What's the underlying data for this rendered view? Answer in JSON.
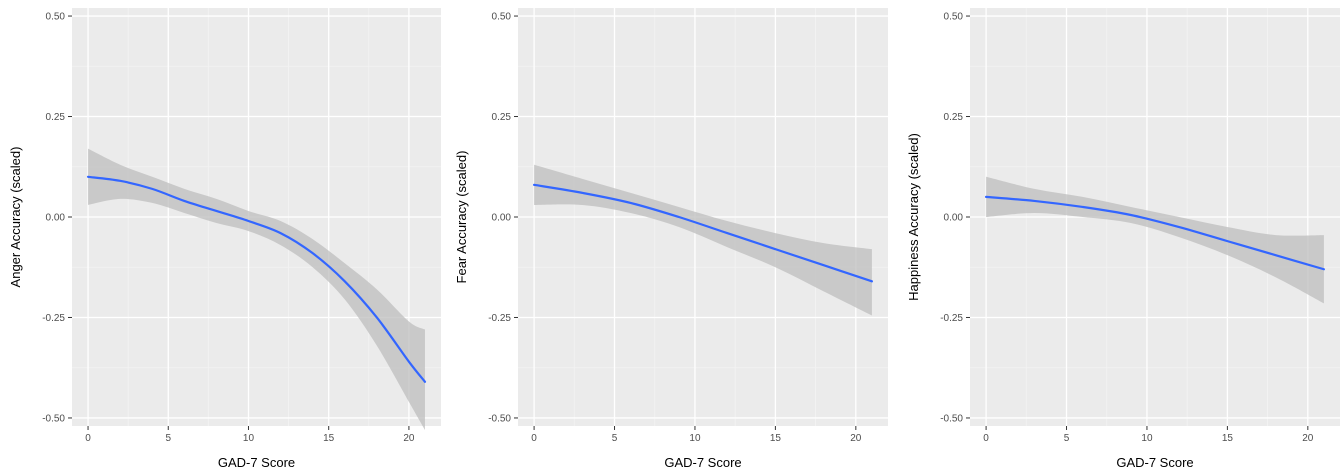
{
  "chart_data": [
    {
      "type": "line",
      "title": "",
      "xlabel": "GAD-7 Score",
      "ylabel": "Anger Accuracy (scaled)",
      "xlim": [
        -1,
        22
      ],
      "ylim": [
        -0.52,
        0.52
      ],
      "x_ticks": [
        0,
        5,
        10,
        15,
        20
      ],
      "y_ticks": [
        0.5,
        0.25,
        0.0,
        -0.25,
        -0.5
      ],
      "x_tick_labels": [
        "0",
        "5",
        "10",
        "15",
        "20"
      ],
      "y_tick_labels": [
        "0.50",
        "0.25",
        "0.00",
        "-0.25",
        "-0.50"
      ],
      "grid": true,
      "series": [
        {
          "x": [
            0,
            2,
            4,
            6,
            8,
            10,
            12,
            14,
            16,
            18,
            20,
            21
          ],
          "y": [
            0.1,
            0.09,
            0.07,
            0.04,
            0.015,
            -0.01,
            -0.04,
            -0.09,
            -0.16,
            -0.25,
            -0.36,
            -0.41
          ],
          "lower": [
            0.03,
            0.045,
            0.035,
            0.01,
            -0.015,
            -0.035,
            -0.07,
            -0.125,
            -0.205,
            -0.32,
            -0.46,
            -0.53
          ],
          "upper": [
            0.17,
            0.13,
            0.1,
            0.07,
            0.045,
            0.015,
            -0.01,
            -0.055,
            -0.115,
            -0.18,
            -0.26,
            -0.28
          ]
        }
      ]
    },
    {
      "type": "line",
      "title": "",
      "xlabel": "GAD-7 Score",
      "ylabel": "Fear Accuracy (scaled)",
      "xlim": [
        -1,
        22
      ],
      "ylim": [
        -0.52,
        0.52
      ],
      "x_ticks": [
        0,
        5,
        10,
        15,
        20
      ],
      "y_ticks": [
        0.5,
        0.25,
        0.0,
        -0.25,
        -0.5
      ],
      "x_tick_labels": [
        "0",
        "5",
        "10",
        "15",
        "20"
      ],
      "y_tick_labels": [
        "0.50",
        "0.25",
        "0.00",
        "-0.25",
        "-0.50"
      ],
      "grid": true,
      "series": [
        {
          "x": [
            0,
            3,
            6,
            9,
            12,
            15,
            18,
            21
          ],
          "y": [
            0.08,
            0.06,
            0.035,
            0.0,
            -0.04,
            -0.08,
            -0.12,
            -0.16
          ],
          "lower": [
            0.03,
            0.03,
            0.01,
            -0.025,
            -0.075,
            -0.125,
            -0.185,
            -0.245
          ],
          "upper": [
            0.13,
            0.095,
            0.06,
            0.025,
            -0.01,
            -0.04,
            -0.065,
            -0.08
          ]
        }
      ]
    },
    {
      "type": "line",
      "title": "",
      "xlabel": "GAD-7 Score",
      "ylabel": "Happiness Accuracy (scaled)",
      "xlim": [
        -1,
        22
      ],
      "ylim": [
        -0.52,
        0.52
      ],
      "x_ticks": [
        0,
        5,
        10,
        15,
        20
      ],
      "y_ticks": [
        0.5,
        0.25,
        0.0,
        -0.25,
        -0.5
      ],
      "x_tick_labels": [
        "0",
        "5",
        "10",
        "15",
        "20"
      ],
      "y_tick_labels": [
        "0.50",
        "0.25",
        "0.00",
        "-0.25",
        "-0.50"
      ],
      "grid": true,
      "series": [
        {
          "x": [
            0,
            3,
            6,
            9,
            12,
            15,
            18,
            21
          ],
          "y": [
            0.05,
            0.04,
            0.025,
            0.005,
            -0.025,
            -0.06,
            -0.095,
            -0.13
          ],
          "lower": [
            0.0,
            0.01,
            0.0,
            -0.015,
            -0.05,
            -0.095,
            -0.15,
            -0.215
          ],
          "upper": [
            0.1,
            0.07,
            0.05,
            0.025,
            0.0,
            -0.025,
            -0.045,
            -0.045
          ]
        }
      ]
    }
  ],
  "style": {
    "panel_bg": "#ebebeb",
    "grid_major": "#ffffff",
    "grid_minor": "#f3f3f3",
    "band_fill": "#bdbdbd",
    "line_color": "#3366ff",
    "text_color": "#4d4d4d"
  }
}
